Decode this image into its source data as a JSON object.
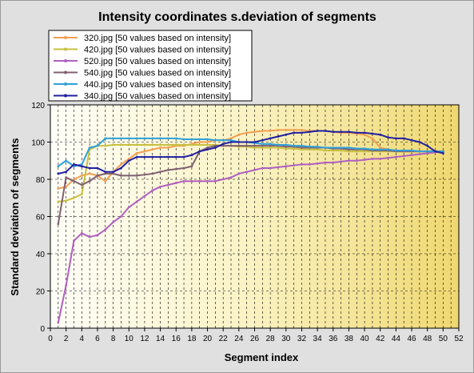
{
  "chart_data": {
    "type": "line",
    "title": "Intensity coordinates s.deviation of segments",
    "xlabel": "Segment index",
    "ylabel": "Standard deviation of segments",
    "xlim": [
      0,
      52
    ],
    "ylim": [
      0,
      120
    ],
    "x_ticks": [
      0,
      2,
      4,
      6,
      8,
      10,
      12,
      14,
      16,
      18,
      20,
      22,
      24,
      26,
      28,
      30,
      32,
      34,
      36,
      38,
      40,
      42,
      44,
      46,
      48,
      50,
      52
    ],
    "y_ticks": [
      0,
      20,
      40,
      60,
      80,
      100,
      120
    ],
    "grid": true,
    "legend_position": "top-left",
    "x": [
      1,
      2,
      3,
      4,
      5,
      6,
      7,
      8,
      9,
      10,
      11,
      12,
      13,
      14,
      15,
      16,
      17,
      18,
      19,
      20,
      21,
      22,
      23,
      24,
      25,
      26,
      27,
      28,
      29,
      30,
      31,
      32,
      33,
      34,
      35,
      36,
      37,
      38,
      39,
      40,
      41,
      42,
      43,
      44,
      45,
      46,
      47,
      48,
      49,
      50
    ],
    "series": [
      {
        "name": "320.jpg [50 values based on intensity]",
        "color": "#f0a050",
        "values": [
          75,
          76,
          80,
          82,
          83,
          82,
          79,
          84,
          88,
          91,
          94,
          95,
          96,
          97,
          97,
          98,
          98,
          99,
          100,
          100,
          101,
          101,
          102,
          104,
          105,
          105.5,
          106,
          106,
          106.5,
          106.5,
          106.5,
          106.5,
          106,
          106,
          106,
          105.5,
          105,
          105,
          104.5,
          104,
          102,
          97,
          96,
          95.5,
          95,
          95,
          95,
          95,
          95,
          95
        ]
      },
      {
        "name": "420.jpg [50 values based on intensity]",
        "color": "#c8c040",
        "values": [
          68,
          68.5,
          70,
          72,
          96,
          98,
          98,
          98.5,
          98.5,
          98.5,
          98.5,
          98.5,
          98.5,
          98.5,
          98.5,
          98.5,
          98.5,
          98.5,
          98.5,
          98.5,
          98.5,
          98,
          98,
          97.5,
          97.5,
          97,
          97,
          97,
          97,
          96.5,
          96.5,
          96,
          96,
          96,
          95.5,
          95.5,
          95.5,
          95,
          95,
          95,
          95,
          95,
          95,
          95,
          95,
          95,
          95,
          95,
          95,
          95
        ]
      },
      {
        "name": "520.jpg [50 values based on intensity]",
        "color": "#b060c0",
        "values": [
          3,
          23,
          47,
          51,
          49,
          50,
          53,
          57,
          60,
          65,
          68,
          71,
          74,
          76,
          77,
          78,
          79,
          79,
          79,
          79,
          79,
          80,
          81,
          83,
          84,
          85,
          86,
          86,
          86.5,
          87,
          87.5,
          88,
          88,
          88.5,
          89,
          89,
          89.5,
          90,
          90,
          90.5,
          91,
          91,
          91.5,
          92,
          92.5,
          93,
          93.5,
          94,
          94.5,
          95
        ]
      },
      {
        "name": "540.jpg [50 values based on intensity]",
        "color": "#806070",
        "values": [
          56,
          81,
          79,
          77,
          79,
          82,
          83,
          83,
          82,
          82,
          82,
          82.5,
          83,
          84,
          85,
          85.5,
          86,
          87,
          95,
          97,
          98,
          98,
          98,
          98,
          98,
          98,
          98,
          98,
          98,
          97.5,
          97.5,
          97,
          97,
          97,
          97,
          96.5,
          96.5,
          96,
          96,
          96,
          95.5,
          95.5,
          95.5,
          95,
          95,
          95,
          95,
          95,
          95,
          95
        ]
      },
      {
        "name": "440.jpg [50 values based on intensity]",
        "color": "#30a0d8",
        "values": [
          87,
          90,
          87,
          88,
          97,
          98,
          102,
          102,
          102,
          102,
          102,
          102,
          102,
          102,
          102,
          102,
          101.5,
          101.5,
          101.5,
          101.5,
          101,
          101,
          101,
          100,
          100,
          99.5,
          99,
          99,
          98.5,
          98.5,
          98,
          98,
          97.5,
          97.5,
          97,
          97,
          97,
          97,
          96.5,
          96.5,
          96,
          96,
          96,
          95.5,
          95.5,
          95.5,
          95,
          95,
          95,
          95
        ]
      },
      {
        "name": "340.jpg [50 values based on intensity]",
        "color": "#2020a0",
        "values": [
          83,
          84,
          88,
          87,
          86,
          86,
          84,
          84,
          86,
          90,
          92,
          92,
          92,
          92,
          92,
          92,
          92,
          93,
          95,
          96,
          97,
          99,
          100,
          100,
          100,
          100,
          101,
          102,
          103,
          104,
          105,
          105,
          105.5,
          106,
          106,
          105.5,
          105.5,
          105.5,
          105,
          105,
          104.5,
          104,
          102.5,
          102,
          102,
          101,
          100,
          98,
          95,
          94
        ]
      }
    ]
  }
}
